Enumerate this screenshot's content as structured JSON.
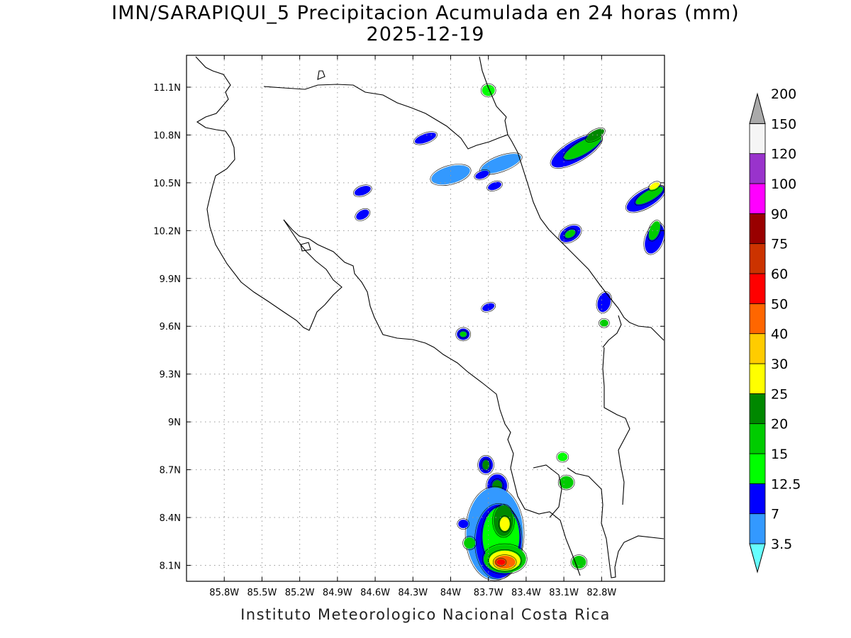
{
  "title": {
    "line1": "IMN/SARAPIQUI_5 Precipitacion Acumulada en 24 horas (mm)",
    "line2": "2025-12-19"
  },
  "footer": "Instituto Meteorologico Nacional Costa Rica",
  "map": {
    "lon_range": [
      -86.1,
      -82.3
    ],
    "lat_range": [
      8.0,
      11.3
    ],
    "lon_ticks": [
      {
        "v": -85.8,
        "label": "85.8W"
      },
      {
        "v": -85.5,
        "label": "85.5W"
      },
      {
        "v": -85.2,
        "label": "85.2W"
      },
      {
        "v": -84.9,
        "label": "84.9W"
      },
      {
        "v": -84.6,
        "label": "84.6W"
      },
      {
        "v": -84.3,
        "label": "84.3W"
      },
      {
        "v": -84.0,
        "label": "84W"
      },
      {
        "v": -83.7,
        "label": "83.7W"
      },
      {
        "v": -83.4,
        "label": "83.4W"
      },
      {
        "v": -83.1,
        "label": "83.1W"
      },
      {
        "v": -82.8,
        "label": "82.8W"
      }
    ],
    "lat_ticks": [
      {
        "v": 8.1,
        "label": "8.1N"
      },
      {
        "v": 8.4,
        "label": "8.4N"
      },
      {
        "v": 8.7,
        "label": "8.7N"
      },
      {
        "v": 9.0,
        "label": "9N"
      },
      {
        "v": 9.3,
        "label": "9.3N"
      },
      {
        "v": 9.6,
        "label": "9.6N"
      },
      {
        "v": 9.9,
        "label": "9.9N"
      },
      {
        "v": 10.2,
        "label": "10.2N"
      },
      {
        "v": 10.5,
        "label": "10.5N"
      },
      {
        "v": 10.8,
        "label": "10.8N"
      },
      {
        "v": 11.1,
        "label": "11.1N"
      }
    ],
    "gridlines": true
  },
  "legend": {
    "units": "mm",
    "levels": [
      {
        "label": "3.5",
        "color": "#66ffff"
      },
      {
        "label": "7",
        "color": "#3399ff"
      },
      {
        "label": "12.5",
        "color": "#0000ff"
      },
      {
        "label": "15",
        "color": "#00ff00"
      },
      {
        "label": "20",
        "color": "#00cc00"
      },
      {
        "label": "25",
        "color": "#008800"
      },
      {
        "label": "30",
        "color": "#ffff00"
      },
      {
        "label": "40",
        "color": "#ffcc00"
      },
      {
        "label": "50",
        "color": "#ff6600"
      },
      {
        "label": "60",
        "color": "#ff0000"
      },
      {
        "label": "75",
        "color": "#cc3300"
      },
      {
        "label": "90",
        "color": "#990000"
      },
      {
        "label": "100",
        "color": "#ff00ff"
      },
      {
        "label": "120",
        "color": "#9933cc"
      },
      {
        "label": "150",
        "color": "#f5f5f5"
      },
      {
        "label": "200",
        "color": "#aaaaaa"
      }
    ]
  },
  "precip_cells": [
    {
      "lon": -84.0,
      "lat": 10.55,
      "rx": 28,
      "ry": 12,
      "rot": -15,
      "level": 1
    },
    {
      "lon": -83.6,
      "lat": 10.62,
      "rx": 30,
      "ry": 10,
      "rot": -20,
      "level": 1
    },
    {
      "lon": -84.7,
      "lat": 10.45,
      "rx": 12,
      "ry": 6,
      "rot": -20,
      "level": 2
    },
    {
      "lon": -84.7,
      "lat": 10.3,
      "rx": 10,
      "ry": 6,
      "rot": -30,
      "level": 2
    },
    {
      "lon": -83.75,
      "lat": 10.55,
      "rx": 10,
      "ry": 5,
      "rot": -20,
      "level": 2
    },
    {
      "lon": -83.65,
      "lat": 10.48,
      "rx": 10,
      "ry": 5,
      "rot": -20,
      "level": 2
    },
    {
      "lon": -84.2,
      "lat": 10.78,
      "rx": 16,
      "ry": 6,
      "rot": -20,
      "level": 2
    },
    {
      "lon": -83.7,
      "lat": 11.08,
      "rx": 9,
      "ry": 8,
      "rot": 0,
      "level": 3
    },
    {
      "lon": -83.0,
      "lat": 10.7,
      "rx": 40,
      "ry": 14,
      "rot": -30,
      "level": 2
    },
    {
      "lon": -82.95,
      "lat": 10.72,
      "rx": 30,
      "ry": 9,
      "rot": -30,
      "level": 4
    },
    {
      "lon": -82.85,
      "lat": 10.8,
      "rx": 14,
      "ry": 6,
      "rot": -30,
      "level": 5
    },
    {
      "lon": -82.45,
      "lat": 10.4,
      "rx": 30,
      "ry": 12,
      "rot": -30,
      "level": 2
    },
    {
      "lon": -82.42,
      "lat": 10.42,
      "rx": 22,
      "ry": 7,
      "rot": -30,
      "level": 4
    },
    {
      "lon": -82.38,
      "lat": 10.48,
      "rx": 8,
      "ry": 4,
      "rot": -30,
      "level": 6
    },
    {
      "lon": -82.38,
      "lat": 10.15,
      "rx": 12,
      "ry": 22,
      "rot": 20,
      "level": 2
    },
    {
      "lon": -82.38,
      "lat": 10.2,
      "rx": 7,
      "ry": 14,
      "rot": 20,
      "level": 4
    },
    {
      "lon": -83.05,
      "lat": 10.18,
      "rx": 16,
      "ry": 10,
      "rot": -30,
      "level": 2
    },
    {
      "lon": -83.05,
      "lat": 10.18,
      "rx": 8,
      "ry": 5,
      "rot": -30,
      "level": 4
    },
    {
      "lon": -82.78,
      "lat": 9.75,
      "rx": 9,
      "ry": 14,
      "rot": 15,
      "level": 2
    },
    {
      "lon": -82.78,
      "lat": 9.62,
      "rx": 6,
      "ry": 5,
      "rot": 0,
      "level": 4
    },
    {
      "lon": -83.9,
      "lat": 9.55,
      "rx": 9,
      "ry": 8,
      "rot": 0,
      "level": 2
    },
    {
      "lon": -83.9,
      "lat": 9.55,
      "rx": 5,
      "ry": 4,
      "rot": 0,
      "level": 4
    },
    {
      "lon": -83.7,
      "lat": 9.72,
      "rx": 9,
      "ry": 5,
      "rot": -20,
      "level": 2
    },
    {
      "lon": -83.72,
      "lat": 8.73,
      "rx": 10,
      "ry": 12,
      "rot": 0,
      "level": 2
    },
    {
      "lon": -83.72,
      "lat": 8.73,
      "rx": 5,
      "ry": 7,
      "rot": 0,
      "level": 5
    },
    {
      "lon": -83.63,
      "lat": 8.6,
      "rx": 14,
      "ry": 16,
      "rot": 0,
      "level": 2
    },
    {
      "lon": -83.63,
      "lat": 8.6,
      "rx": 7,
      "ry": 8,
      "rot": 0,
      "level": 5
    },
    {
      "lon": -83.65,
      "lat": 8.3,
      "rx": 40,
      "ry": 65,
      "rot": 0,
      "level": 1
    },
    {
      "lon": -83.62,
      "lat": 8.25,
      "rx": 32,
      "ry": 52,
      "rot": 0,
      "level": 2
    },
    {
      "lon": -83.6,
      "lat": 8.28,
      "rx": 26,
      "ry": 42,
      "rot": 0,
      "level": 3
    },
    {
      "lon": -83.58,
      "lat": 8.38,
      "rx": 14,
      "ry": 22,
      "rot": 0,
      "level": 5
    },
    {
      "lon": -83.57,
      "lat": 8.36,
      "rx": 7,
      "ry": 10,
      "rot": 0,
      "level": 6
    },
    {
      "lon": -83.57,
      "lat": 8.14,
      "rx": 30,
      "ry": 20,
      "rot": 0,
      "level": 4
    },
    {
      "lon": -83.57,
      "lat": 8.13,
      "rx": 22,
      "ry": 14,
      "rot": 0,
      "level": 6
    },
    {
      "lon": -83.57,
      "lat": 8.12,
      "rx": 15,
      "ry": 9,
      "rot": 0,
      "level": 8
    },
    {
      "lon": -83.6,
      "lat": 8.12,
      "rx": 6,
      "ry": 4,
      "rot": 0,
      "level": 9
    },
    {
      "lon": -83.85,
      "lat": 8.24,
      "rx": 8,
      "ry": 8,
      "rot": 0,
      "level": 4
    },
    {
      "lon": -83.9,
      "lat": 8.36,
      "rx": 7,
      "ry": 6,
      "rot": 0,
      "level": 2
    },
    {
      "lon": -83.08,
      "lat": 8.62,
      "rx": 10,
      "ry": 9,
      "rot": 0,
      "level": 4
    },
    {
      "lon": -83.11,
      "lat": 8.78,
      "rx": 7,
      "ry": 6,
      "rot": 0,
      "level": 3
    },
    {
      "lon": -82.98,
      "lat": 8.12,
      "rx": 10,
      "ry": 9,
      "rot": 0,
      "level": 4
    }
  ]
}
